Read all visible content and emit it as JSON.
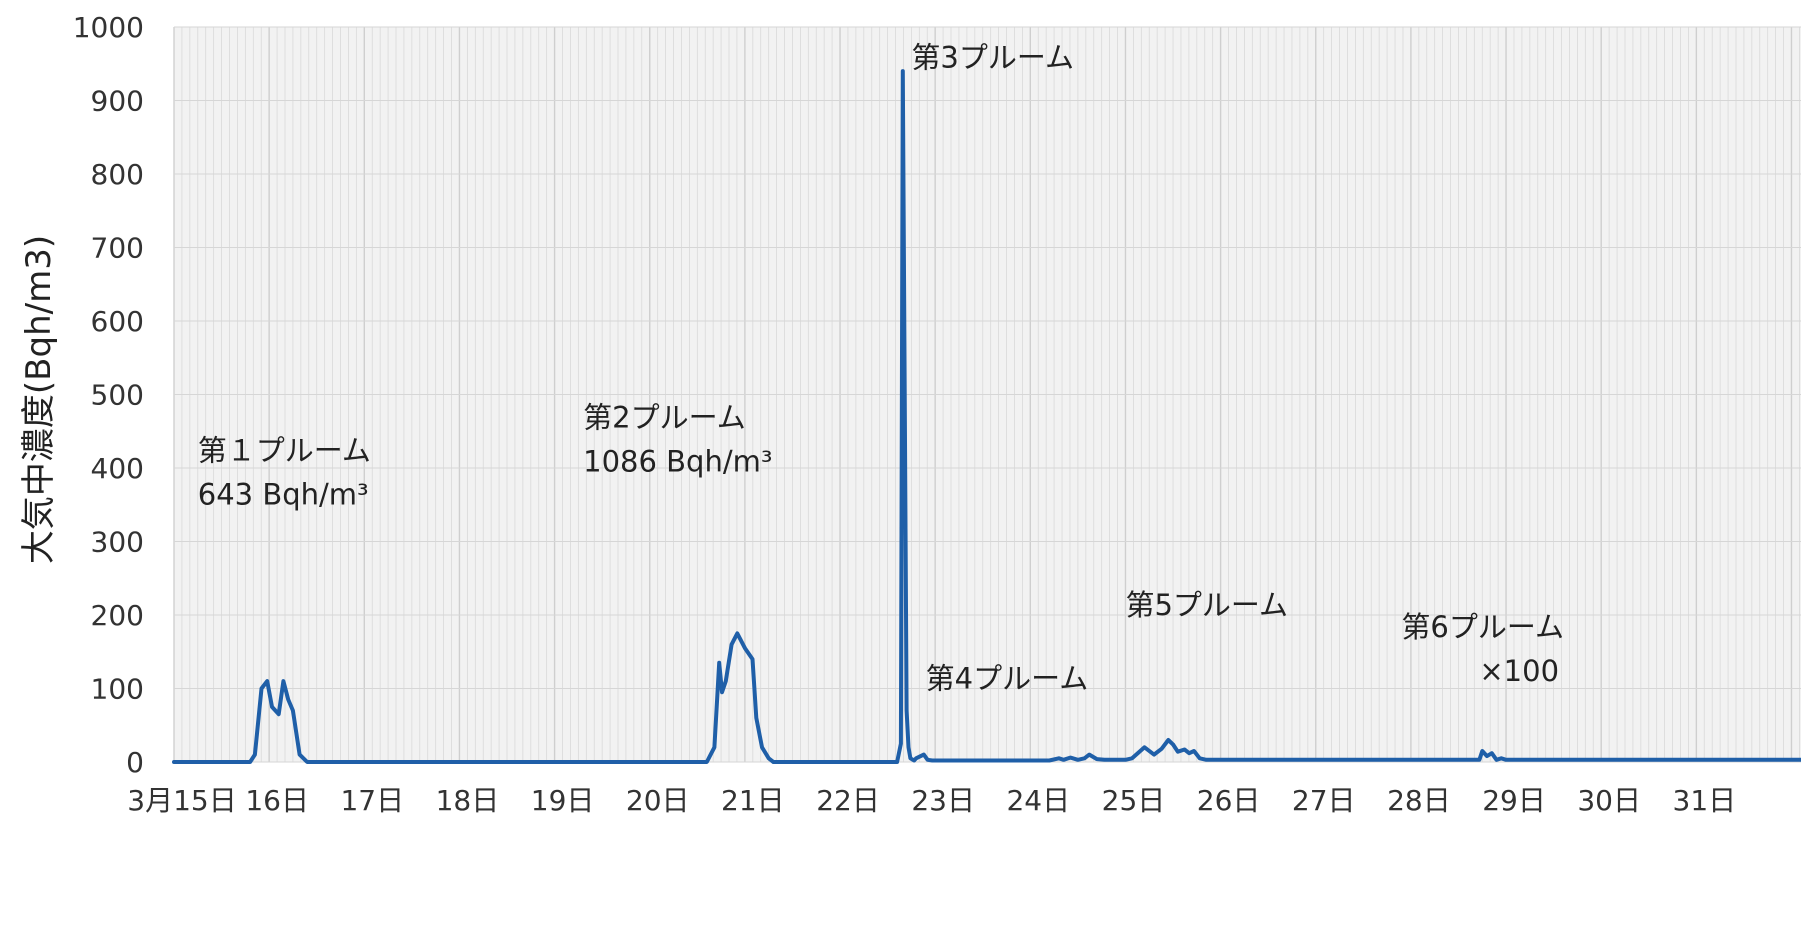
{
  "chart_data": {
    "type": "line",
    "title": "",
    "xlabel": "",
    "ylabel": "大気中濃度(Bqh/m3)",
    "ylim": [
      0,
      1000
    ],
    "xlim": [
      15,
      32.1
    ],
    "yticks": [
      0,
      100,
      200,
      300,
      400,
      500,
      600,
      700,
      800,
      900,
      1000
    ],
    "x_tick_positions": [
      15,
      16,
      17,
      18,
      19,
      20,
      21,
      22,
      23,
      24,
      25,
      26,
      27,
      28,
      29,
      30,
      31
    ],
    "x_tick_labels": [
      "3月15日",
      "16日",
      "17日",
      "18日",
      "19日",
      "20日",
      "21日",
      "22日",
      "23日",
      "24日",
      "25日",
      "26日",
      "27日",
      "28日",
      "29日",
      "30日",
      "31日"
    ],
    "grid": true,
    "colors": {
      "line": "#1f5fa8",
      "grid": "#cfcfcf",
      "plot_bg": "#f2f2f2"
    },
    "series": [
      {
        "x": [
          15.0,
          15.8,
          15.85,
          15.92,
          15.98,
          16.03,
          16.1,
          16.15,
          16.2,
          16.25,
          16.32,
          16.4,
          20.6,
          20.68,
          20.73,
          20.76,
          20.8,
          20.86,
          20.92,
          21.0,
          21.08,
          21.12,
          21.18,
          21.25,
          21.3,
          22.6,
          22.64,
          22.66,
          22.7,
          22.72,
          22.74,
          22.78,
          22.8,
          22.88,
          22.92,
          22.97,
          24.2,
          24.3,
          24.35,
          24.42,
          24.5,
          24.57,
          24.62,
          24.7,
          24.78,
          25.0,
          25.07,
          25.2,
          25.3,
          25.38,
          25.45,
          25.5,
          25.55,
          25.62,
          25.67,
          25.72,
          25.78,
          25.85,
          25.9,
          27.9,
          28.72,
          28.75,
          28.8,
          28.85,
          28.9,
          28.95,
          29.0,
          32.1
        ],
        "y": [
          0,
          0,
          10,
          100,
          110,
          75,
          65,
          110,
          85,
          70,
          10,
          0,
          0,
          20,
          135,
          95,
          110,
          160,
          175,
          155,
          140,
          60,
          20,
          5,
          0,
          0,
          25,
          940,
          70,
          20,
          5,
          2,
          5,
          10,
          3,
          2,
          2,
          5,
          3,
          6,
          3,
          5,
          10,
          4,
          3,
          3,
          5,
          20,
          10,
          18,
          30,
          24,
          14,
          17,
          12,
          15,
          5,
          3,
          3,
          3,
          3,
          15,
          8,
          12,
          3,
          5,
          3,
          3
        ]
      }
    ],
    "annotations": [
      {
        "lines": [
          "第１プルーム",
          "643 Bqh/m³"
        ],
        "x": 15.25,
        "y": 410
      },
      {
        "lines": [
          "第2プルーム",
          "1086 Bqh/m³"
        ],
        "x": 19.3,
        "y": 455
      },
      {
        "lines": [
          "第3プルーム"
        ],
        "x": 22.75,
        "y": 945
      },
      {
        "lines": [
          "第4プルーム"
        ],
        "x": 22.9,
        "y": 100
      },
      {
        "lines": [
          "第5プルーム"
        ],
        "x": 25.0,
        "y": 200
      },
      {
        "lines": [
          "第6プルーム",
          "×100"
        ],
        "x": 27.9,
        "y": 170
      }
    ]
  }
}
